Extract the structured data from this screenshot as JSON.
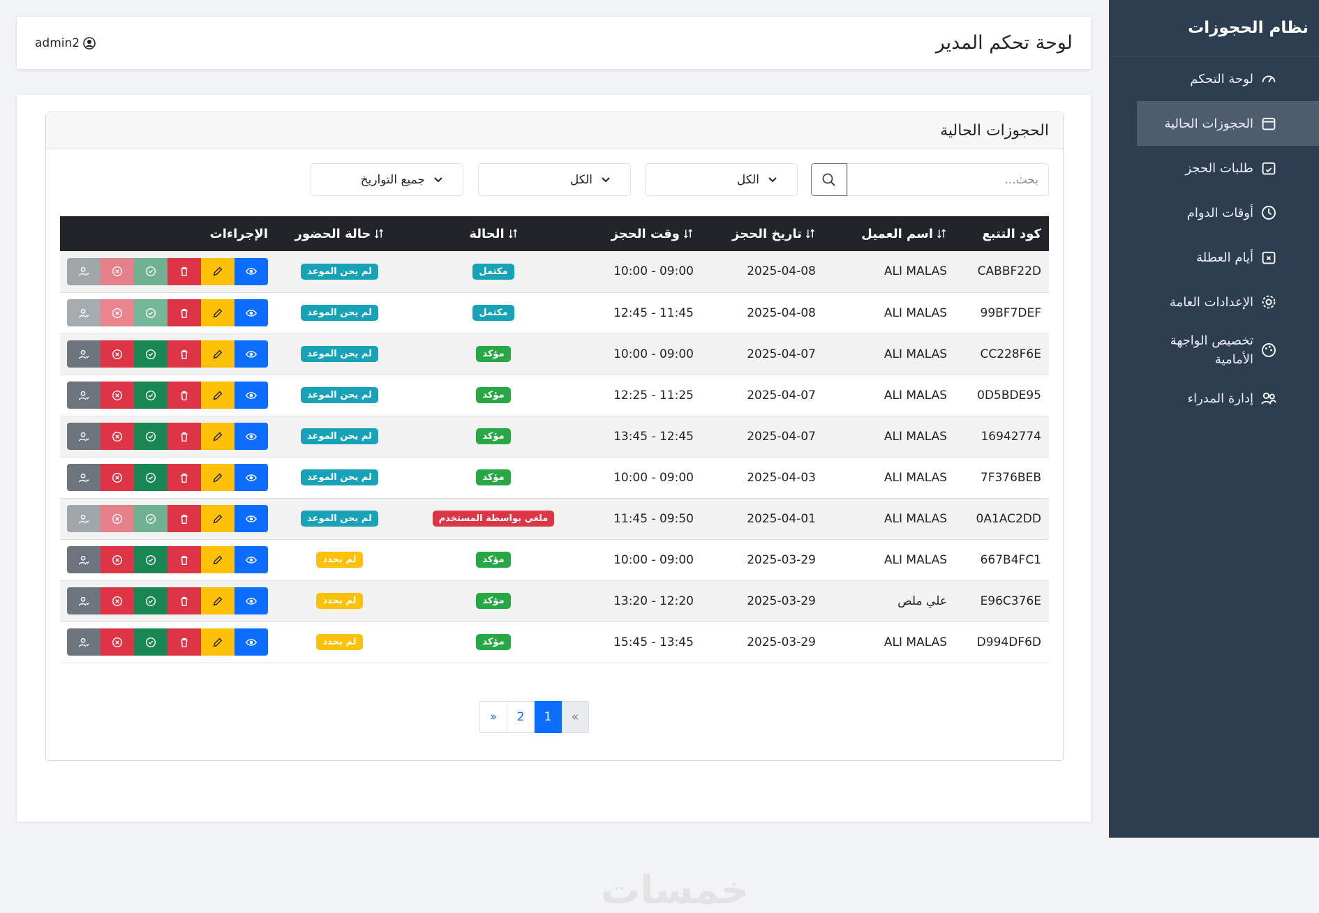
{
  "header": {
    "title": "لوحة تحكم المدير",
    "user": "admin2"
  },
  "sidebar": {
    "brand": "نظام الحجوزات",
    "active": 1,
    "items": [
      "لوحة التحكم",
      "الحجوزات الحالية",
      "طلبات الحجز",
      "أوقات الدوام",
      "أيام العطلة",
      "الإعدادات العامة",
      "تخصيص الواجهة الأمامية",
      "إدارة المدراء"
    ]
  },
  "panel": {
    "title": "الحجوزات الحالية"
  },
  "filters": {
    "search_placeholder": "بحث...",
    "status": "الكل",
    "attendance": "الكل",
    "dates": "جميع التواريخ"
  },
  "table": {
    "columns": [
      {
        "label": "كود التتبع",
        "sortable": false
      },
      {
        "label": "اسم العميل",
        "sortable": true
      },
      {
        "label": "تاريخ الحجز",
        "sortable": true
      },
      {
        "label": "وقت الحجز",
        "sortable": true
      },
      {
        "label": "الحالة",
        "sortable": true
      },
      {
        "label": "حالة الحضور",
        "sortable": true
      },
      {
        "label": "الإجراءات",
        "sortable": false
      }
    ],
    "rows": [
      {
        "code": "CABBF22D",
        "name": "ALI MALAS",
        "date": "2025-04-08",
        "time": "10:00 - 09:00",
        "status": "مكتمل",
        "status_color": "#17a2b8",
        "attendance": "لم يحن الموعد",
        "attendance_color": "#17a2b8",
        "actions_disabled": true
      },
      {
        "code": "99BF7DEF",
        "name": "ALI MALAS",
        "date": "2025-04-08",
        "time": "12:45 - 11:45",
        "status": "مكتمل",
        "status_color": "#17a2b8",
        "attendance": "لم يحن الموعد",
        "attendance_color": "#17a2b8",
        "actions_disabled": true
      },
      {
        "code": "CC228F6E",
        "name": "ALI MALAS",
        "date": "2025-04-07",
        "time": "10:00 - 09:00",
        "status": "مؤكد",
        "status_color": "#28a745",
        "attendance": "لم يحن الموعد",
        "attendance_color": "#17a2b8",
        "actions_disabled": false
      },
      {
        "code": "0D5BDE95",
        "name": "ALI MALAS",
        "date": "2025-04-07",
        "time": "12:25 - 11:25",
        "status": "مؤكد",
        "status_color": "#28a745",
        "attendance": "لم يحن الموعد",
        "attendance_color": "#17a2b8",
        "actions_disabled": false
      },
      {
        "code": "16942774",
        "name": "ALI MALAS",
        "date": "2025-04-07",
        "time": "13:45 - 12:45",
        "status": "مؤكد",
        "status_color": "#28a745",
        "attendance": "لم يحن الموعد",
        "attendance_color": "#17a2b8",
        "actions_disabled": false
      },
      {
        "code": "7F376BEB",
        "name": "ALI MALAS",
        "date": "2025-04-03",
        "time": "10:00 - 09:00",
        "status": "مؤكد",
        "status_color": "#28a745",
        "attendance": "لم يحن الموعد",
        "attendance_color": "#17a2b8",
        "actions_disabled": false
      },
      {
        "code": "0A1AC2DD",
        "name": "ALI MALAS",
        "date": "2025-04-01",
        "time": "11:45 - 09:50",
        "status": "ملغي بواسطة المستخدم",
        "status_color": "#dc3545",
        "attendance": "لم يحن الموعد",
        "attendance_color": "#17a2b8",
        "actions_disabled": true
      },
      {
        "code": "667B4FC1",
        "name": "ALI MALAS",
        "date": "2025-03-29",
        "time": "10:00 - 09:00",
        "status": "مؤكد",
        "status_color": "#28a745",
        "attendance": "لم يحدد",
        "attendance_color": "#ffc107",
        "actions_disabled": false
      },
      {
        "code": "E96C376E",
        "name": "علي ملص",
        "date": "2025-03-29",
        "time": "13:20 - 12:20",
        "status": "مؤكد",
        "status_color": "#28a745",
        "attendance": "لم يحدد",
        "attendance_color": "#ffc107",
        "actions_disabled": false
      },
      {
        "code": "D994DF6D",
        "name": "ALI MALAS",
        "date": "2025-03-29",
        "time": "15:45 - 13:45",
        "status": "مؤكد",
        "status_color": "#28a745",
        "attendance": "لم يحدد",
        "attendance_color": "#ffc107",
        "actions_disabled": false
      }
    ]
  },
  "pagination": {
    "prev": "»",
    "pages": [
      1,
      2
    ],
    "active": 0,
    "next": "«"
  },
  "watermark": "خمسات"
}
